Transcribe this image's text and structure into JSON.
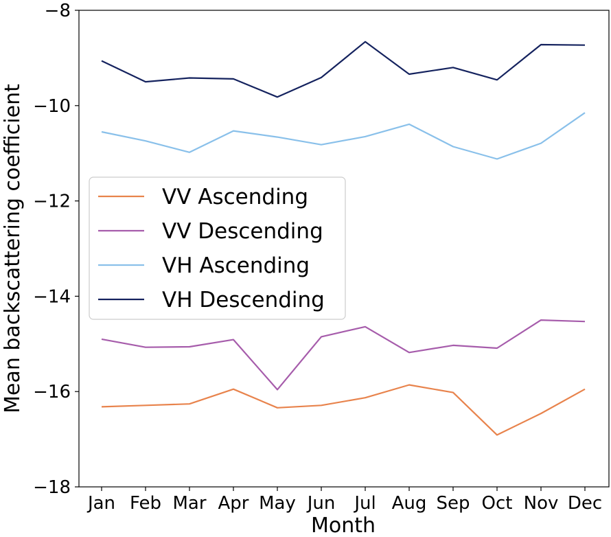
{
  "chart_data": {
    "type": "line",
    "categories": [
      "Jan",
      "Feb",
      "Mar",
      "Apr",
      "May",
      "Jun",
      "Jul",
      "Aug",
      "Sep",
      "Oct",
      "Nov",
      "Dec"
    ],
    "series": [
      {
        "name": "VV Ascending",
        "color": "#e8834c",
        "values": [
          -16.32,
          -16.29,
          -16.26,
          -15.95,
          -16.34,
          -16.29,
          -16.13,
          -15.86,
          -16.02,
          -16.91,
          -16.46,
          -15.95
        ]
      },
      {
        "name": "VV Descending",
        "color": "#a65cab",
        "values": [
          -14.9,
          -15.07,
          -15.06,
          -14.91,
          -15.96,
          -14.85,
          -14.64,
          -15.18,
          -15.03,
          -15.09,
          -14.5,
          -14.53
        ]
      },
      {
        "name": "VH Ascending",
        "color": "#89c0ea",
        "values": [
          -10.55,
          -10.74,
          -10.98,
          -10.53,
          -10.66,
          -10.82,
          -10.65,
          -10.39,
          -10.86,
          -11.12,
          -10.79,
          -10.15
        ]
      },
      {
        "name": "VH Descending",
        "color": "#14225e",
        "values": [
          -9.06,
          -9.5,
          -9.42,
          -9.44,
          -9.82,
          -9.41,
          -8.66,
          -9.34,
          -9.2,
          -9.46,
          -8.72,
          -8.73
        ]
      }
    ],
    "xlabel": "Month",
    "ylabel": "Mean backscattering coefficient",
    "ylim": [
      -18,
      -8
    ],
    "yticks": [
      -18,
      -16,
      -14,
      -12,
      -10,
      -8
    ],
    "ytick_labels": [
      "−18",
      "−16",
      "−14",
      "−12",
      "−10",
      "−8"
    ],
    "grid": false,
    "legend_position": "center-left"
  }
}
